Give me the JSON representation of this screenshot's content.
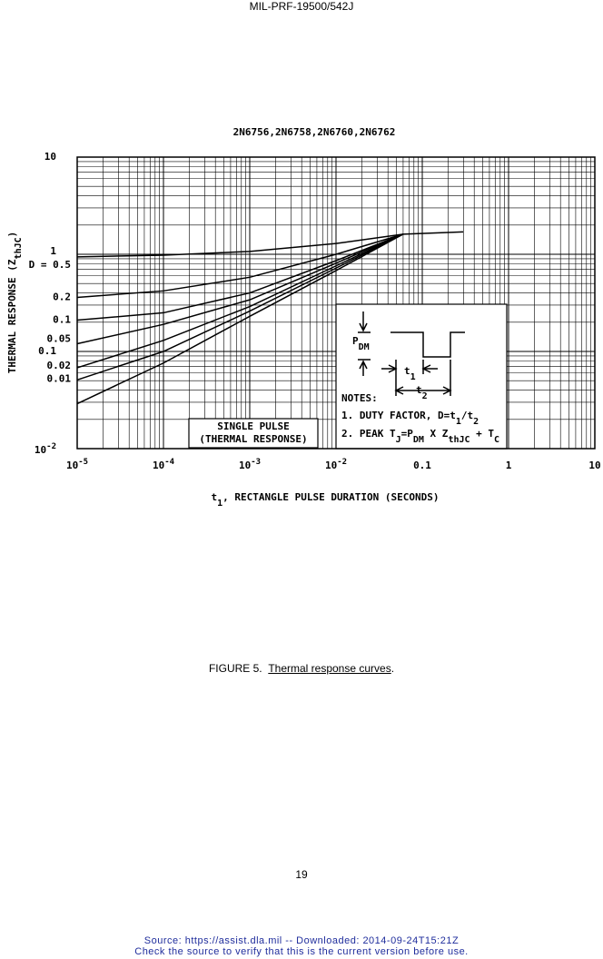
{
  "header": "MIL-PRF-19500/542J",
  "chart_data": {
    "type": "line",
    "title": "2N6756,2N6758,2N6760,2N6762",
    "x_label": [
      "t",
      "1",
      ", RECTANGLE PULSE DURATION (SECONDS)"
    ],
    "y_label": [
      "THERMAL RESPONSE (Z",
      "thJC",
      ")"
    ],
    "log_x": true,
    "log_y": true,
    "grid": true,
    "minor_grid": true,
    "xlim": [
      1e-05,
      10
    ],
    "xticks": [
      {
        "value": 1e-05,
        "label": "10",
        "exponent": "-5"
      },
      {
        "value": 0.0001,
        "label": "10",
        "exponent": "-4"
      },
      {
        "value": 0.001,
        "label": "10",
        "exponent": "-3"
      },
      {
        "value": 0.01,
        "label": "10",
        "exponent": "-2"
      },
      0.1,
      1,
      10
    ],
    "ylim": [
      0.01,
      10
    ],
    "yticks": [
      10,
      1,
      0.1,
      {
        "value": 0.01,
        "label": "10",
        "exponent": "-2"
      }
    ],
    "x": [
      1e-05,
      0.0001,
      0.001,
      0.01,
      0.06,
      0.3
    ],
    "series": [
      {
        "name": "D = 0.5",
        "color": "#000000",
        "values": [
          0.94,
          0.98,
          1.07,
          1.29,
          1.61,
          1.7
        ]
      },
      {
        "name": "0.2",
        "color": "#000000",
        "values": [
          0.36,
          0.42,
          0.58,
          1.0,
          1.61,
          null
        ]
      },
      {
        "name": "0.1",
        "color": "#000000",
        "values": [
          0.21,
          0.25,
          0.4,
          0.86,
          1.61,
          null
        ]
      },
      {
        "name": "0.05",
        "color": "#000000",
        "values": [
          0.12,
          0.19,
          0.34,
          0.81,
          1.61,
          null
        ]
      },
      {
        "name": "0.02",
        "color": "#000000",
        "values": [
          0.068,
          0.13,
          0.29,
          0.76,
          1.61,
          null
        ]
      },
      {
        "name": "0.01",
        "color": "#000000",
        "values": [
          0.051,
          0.1,
          0.26,
          0.72,
          1.61,
          null
        ]
      },
      {
        "name": "SINGLE PULSE",
        "color": "#000000",
        "values": [
          0.029,
          0.076,
          0.23,
          0.68,
          1.61,
          null
        ]
      }
    ],
    "single_pulse_note": "(THERMAL RESPONSE)",
    "inset": {
      "p_dm": [
        "P",
        "DM"
      ],
      "t1": [
        "t",
        "1"
      ],
      "t2": [
        "t",
        "2"
      ],
      "notes_title": "NOTES:",
      "note1": [
        "1. DUTY FACTOR, D=t",
        "1",
        "/t",
        "2"
      ],
      "note2": [
        "2. PEAK T",
        "J",
        "=P",
        "DM",
        " X Z",
        "thJC",
        " + T",
        "C"
      ]
    }
  },
  "caption": {
    "prefix": "FIGURE 5.",
    "text": "Thermal response curves",
    "suffix": "."
  },
  "page_number": "19",
  "footer": [
    "Source: https://assist.dla.mil -- Downloaded: 2014-09-24T15:21Z",
    "Check the source to verify that this is the current version before use."
  ]
}
